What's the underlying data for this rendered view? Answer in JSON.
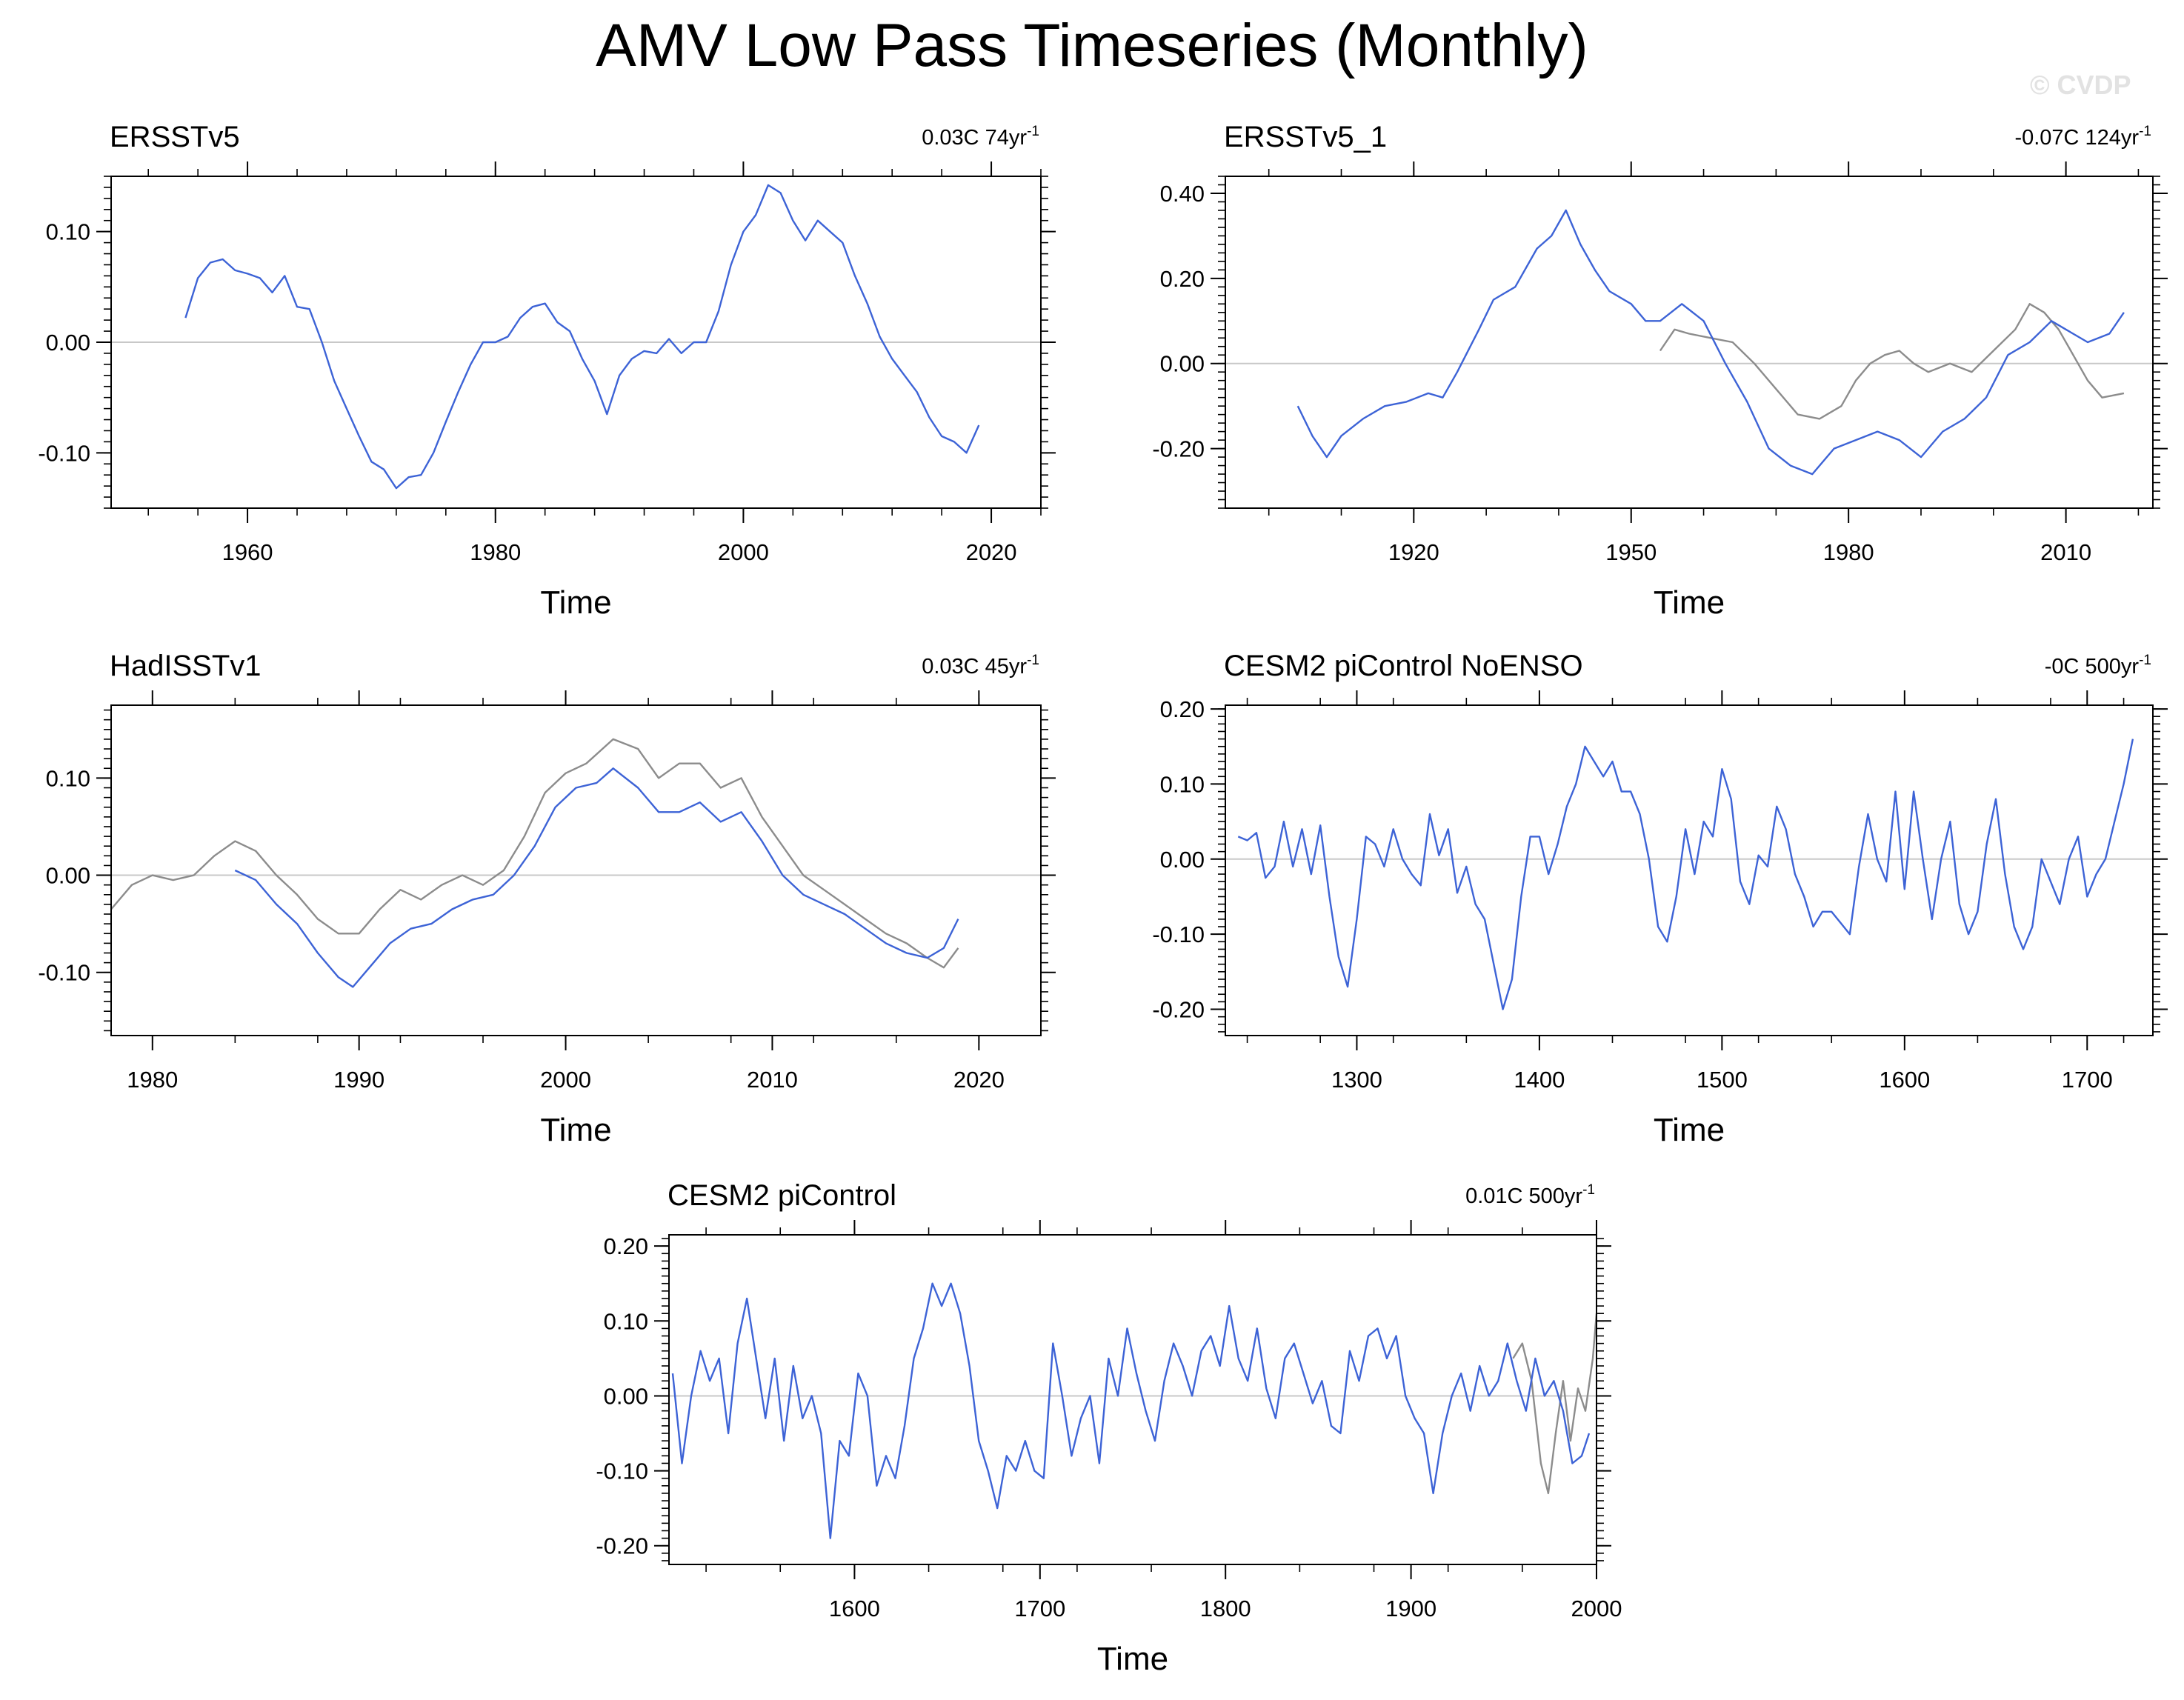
{
  "title": "AMV Low Pass Timeseries (Monthly)",
  "watermark": "© CVDP",
  "colors": {
    "primary": "#3d63d6",
    "secondary": "#8c8c8c",
    "zero_line": "#c8c8c8",
    "frame": "#000000"
  },
  "chart_data": [
    {
      "type": "line",
      "title": "ERSSTv5",
      "stat": "0.03C 74yr",
      "stat_sup": "-1",
      "xlabel": "Time",
      "xlim": [
        1949,
        2024
      ],
      "ylim": [
        -0.15,
        0.15
      ],
      "xticks": [
        1960,
        1980,
        2000,
        2020
      ],
      "xticklabels": [
        "1960",
        "1980",
        "2000",
        "2020"
      ],
      "yticks": [
        -0.1,
        0.0,
        0.1
      ],
      "yticklabels": [
        "-0.10",
        "0.00",
        "0.10"
      ],
      "series": [
        {
          "role": "primary",
          "x": [
            1955,
            1956,
            1957,
            1958,
            1959,
            1960,
            1961,
            1962,
            1963,
            1964,
            1965,
            1966,
            1967,
            1968,
            1969,
            1970,
            1971,
            1972,
            1973,
            1974,
            1975,
            1976,
            1977,
            1978,
            1979,
            1980,
            1981,
            1982,
            1983,
            1984,
            1985,
            1986,
            1987,
            1988,
            1989,
            1990,
            1991,
            1992,
            1993,
            1994,
            1995,
            1996,
            1997,
            1998,
            1999,
            2000,
            2001,
            2002,
            2003,
            2004,
            2005,
            2006,
            2007,
            2008,
            2009,
            2010,
            2011,
            2012,
            2013,
            2014,
            2015,
            2016,
            2017,
            2018,
            2019
          ],
          "y": [
            0.022,
            0.058,
            0.072,
            0.075,
            0.065,
            0.062,
            0.058,
            0.045,
            0.06,
            0.032,
            0.03,
            0.0,
            -0.035,
            -0.06,
            -0.085,
            -0.108,
            -0.115,
            -0.132,
            -0.122,
            -0.12,
            -0.1,
            -0.072,
            -0.045,
            -0.02,
            0.0,
            0.0,
            0.005,
            0.022,
            0.032,
            0.035,
            0.018,
            0.01,
            -0.015,
            -0.035,
            -0.065,
            -0.03,
            -0.015,
            -0.008,
            -0.01,
            0.003,
            -0.01,
            0.0,
            0.0,
            0.028,
            0.07,
            0.1,
            0.115,
            0.142,
            0.135,
            0.11,
            0.092,
            0.11,
            0.1,
            0.09,
            0.06,
            0.035,
            0.005,
            -0.015,
            -0.03,
            -0.045,
            -0.068,
            -0.085,
            -0.09,
            -0.1,
            -0.075
          ]
        }
      ]
    },
    {
      "type": "line",
      "title": "ERSSTv5_1",
      "stat": "-0.07C 124yr",
      "stat_sup": "-1",
      "xlabel": "Time",
      "xlim": [
        1894,
        2022
      ],
      "ylim": [
        -0.34,
        0.44
      ],
      "xticks": [
        1920,
        1950,
        1980,
        2010
      ],
      "xticklabels": [
        "1920",
        "1950",
        "1980",
        "2010"
      ],
      "yticks": [
        -0.2,
        0.0,
        0.2,
        0.4
      ],
      "yticklabels": [
        "-0.20",
        "0.00",
        "0.20",
        "0.40"
      ],
      "series": [
        {
          "role": "primary",
          "x": [
            1904,
            1906,
            1908,
            1910,
            1913,
            1916,
            1919,
            1922,
            1924,
            1926,
            1929,
            1931,
            1934,
            1937,
            1939,
            1941,
            1943,
            1945,
            1947,
            1950,
            1952,
            1954,
            1957,
            1960,
            1963,
            1966,
            1969,
            1972,
            1975,
            1978,
            1981,
            1984,
            1987,
            1990,
            1993,
            1996,
            1999,
            2002,
            2005,
            2008,
            2010,
            2013,
            2016,
            2018
          ],
          "y": [
            -0.1,
            -0.17,
            -0.22,
            -0.17,
            -0.13,
            -0.1,
            -0.09,
            -0.07,
            -0.08,
            -0.02,
            0.08,
            0.15,
            0.18,
            0.27,
            0.3,
            0.36,
            0.28,
            0.22,
            0.17,
            0.14,
            0.1,
            0.1,
            0.14,
            0.1,
            0.0,
            -0.09,
            -0.2,
            -0.24,
            -0.26,
            -0.2,
            -0.18,
            -0.16,
            -0.18,
            -0.22,
            -0.16,
            -0.13,
            -0.08,
            0.02,
            0.05,
            0.1,
            0.08,
            0.05,
            0.07,
            0.12
          ]
        },
        {
          "role": "secondary",
          "x": [
            1954,
            1956,
            1958,
            1961,
            1964,
            1967,
            1970,
            1973,
            1976,
            1979,
            1981,
            1983,
            1985,
            1987,
            1989,
            1991,
            1994,
            1997,
            2000,
            2003,
            2005,
            2007,
            2009,
            2011,
            2013,
            2015,
            2018
          ],
          "y": [
            0.03,
            0.08,
            0.07,
            0.06,
            0.05,
            0.0,
            -0.06,
            -0.12,
            -0.13,
            -0.1,
            -0.04,
            0.0,
            0.02,
            0.03,
            0.0,
            -0.02,
            0.0,
            -0.02,
            0.03,
            0.08,
            0.14,
            0.12,
            0.08,
            0.02,
            -0.04,
            -0.08,
            -0.07
          ]
        }
      ]
    },
    {
      "type": "line",
      "title": "HadISSTv1",
      "stat": "0.03C 45yr",
      "stat_sup": "-1",
      "xlabel": "Time",
      "xlim": [
        1978,
        2023
      ],
      "ylim": [
        -0.165,
        0.175
      ],
      "xticks": [
        1980,
        1990,
        2000,
        2010,
        2020
      ],
      "xticklabels": [
        "1980",
        "1990",
        "2000",
        "2010",
        "2020"
      ],
      "yticks": [
        -0.1,
        0.0,
        0.1
      ],
      "yticklabels": [
        "-0.10",
        "0.00",
        "0.10"
      ],
      "series": [
        {
          "role": "primary",
          "x": [
            1984,
            1985,
            1986,
            1987,
            1988,
            1989,
            1989.7,
            1990.5,
            1991.5,
            1992.5,
            1993.5,
            1994.5,
            1995.5,
            1996.5,
            1997.5,
            1998.5,
            1999.5,
            2000.5,
            2001.5,
            2002.3,
            2003.5,
            2004.5,
            2005.5,
            2006.5,
            2007.5,
            2008.5,
            2009.5,
            2010.5,
            2011.5,
            2012.5,
            2013.5,
            2014.5,
            2015.5,
            2016.5,
            2017.5,
            2018.3,
            2019
          ],
          "y": [
            0.005,
            -0.005,
            -0.03,
            -0.05,
            -0.08,
            -0.105,
            -0.115,
            -0.095,
            -0.07,
            -0.055,
            -0.05,
            -0.035,
            -0.025,
            -0.02,
            0.0,
            0.03,
            0.07,
            0.09,
            0.095,
            0.11,
            0.09,
            0.065,
            0.065,
            0.075,
            0.055,
            0.065,
            0.035,
            0.0,
            -0.02,
            -0.03,
            -0.04,
            -0.055,
            -0.07,
            -0.08,
            -0.085,
            -0.075,
            -0.045
          ]
        },
        {
          "role": "secondary",
          "x": [
            1978,
            1979,
            1980,
            1981,
            1982,
            1983,
            1984,
            1985,
            1986,
            1987,
            1988,
            1989,
            1990,
            1991,
            1992,
            1993,
            1994,
            1995,
            1996,
            1997,
            1998,
            1999,
            2000,
            2001,
            2002.3,
            2003.5,
            2004.5,
            2005.5,
            2006.5,
            2007.5,
            2008.5,
            2009.5,
            2010.5,
            2011.5,
            2012.5,
            2013.5,
            2014.5,
            2015.5,
            2016.5,
            2017.5,
            2018.3,
            2019
          ],
          "y": [
            -0.035,
            -0.01,
            0.0,
            -0.005,
            0.0,
            0.02,
            0.035,
            0.025,
            0.0,
            -0.02,
            -0.045,
            -0.06,
            -0.06,
            -0.035,
            -0.015,
            -0.025,
            -0.01,
            0.0,
            -0.01,
            0.005,
            0.04,
            0.085,
            0.105,
            0.115,
            0.14,
            0.13,
            0.1,
            0.115,
            0.115,
            0.09,
            0.1,
            0.06,
            0.03,
            0.0,
            -0.015,
            -0.03,
            -0.045,
            -0.06,
            -0.07,
            -0.085,
            -0.095,
            -0.075
          ]
        }
      ]
    },
    {
      "type": "line",
      "title": "CESM2 piControl NoENSO",
      "stat": "-0C 500yr",
      "stat_sup": "-1",
      "xlabel": "Time",
      "xlim": [
        1228,
        1736
      ],
      "ylim": [
        -0.235,
        0.205
      ],
      "xticks": [
        1300,
        1400,
        1500,
        1600,
        1700
      ],
      "xticklabels": [
        "1300",
        "1400",
        "1500",
        "1600",
        "1700"
      ],
      "yticks": [
        -0.2,
        -0.1,
        0.0,
        0.1,
        0.2
      ],
      "yticklabels": [
        "-0.20",
        "-0.10",
        "0.00",
        "0.10",
        "0.20"
      ],
      "series": [
        {
          "role": "primary",
          "x": [
            1235,
            1240,
            1245,
            1250,
            1255,
            1260,
            1265,
            1270,
            1275,
            1280,
            1285,
            1290,
            1295,
            1300,
            1305,
            1310,
            1315,
            1320,
            1325,
            1330,
            1335,
            1340,
            1345,
            1350,
            1355,
            1360,
            1365,
            1370,
            1375,
            1380,
            1385,
            1390,
            1395,
            1400,
            1405,
            1410,
            1415,
            1420,
            1425,
            1430,
            1435,
            1440,
            1445,
            1450,
            1455,
            1460,
            1465,
            1470,
            1475,
            1480,
            1485,
            1490,
            1495,
            1500,
            1505,
            1510,
            1515,
            1520,
            1525,
            1530,
            1535,
            1540,
            1545,
            1550,
            1555,
            1560,
            1565,
            1570,
            1575,
            1580,
            1585,
            1590,
            1595,
            1600,
            1605,
            1610,
            1615,
            1620,
            1625,
            1630,
            1635,
            1640,
            1645,
            1650,
            1655,
            1660,
            1665,
            1670,
            1675,
            1680,
            1685,
            1690,
            1695,
            1700,
            1705,
            1710,
            1715,
            1720,
            1725
          ],
          "y": [
            0.03,
            0.025,
            0.035,
            -0.025,
            -0.01,
            0.05,
            -0.01,
            0.04,
            -0.02,
            0.045,
            -0.05,
            -0.13,
            -0.17,
            -0.08,
            0.03,
            0.02,
            -0.01,
            0.04,
            0.0,
            -0.02,
            -0.035,
            0.06,
            0.005,
            0.04,
            -0.045,
            -0.01,
            -0.06,
            -0.08,
            -0.14,
            -0.2,
            -0.16,
            -0.05,
            0.03,
            0.03,
            -0.02,
            0.02,
            0.07,
            0.1,
            0.15,
            0.13,
            0.11,
            0.13,
            0.09,
            0.09,
            0.06,
            0.0,
            -0.09,
            -0.11,
            -0.05,
            0.04,
            -0.02,
            0.05,
            0.03,
            0.12,
            0.08,
            -0.03,
            -0.06,
            0.005,
            -0.01,
            0.07,
            0.04,
            -0.02,
            -0.05,
            -0.09,
            -0.07,
            -0.07,
            -0.085,
            -0.1,
            -0.01,
            0.06,
            0.0,
            -0.03,
            0.09,
            -0.04,
            0.09,
            0.0,
            -0.08,
            0.0,
            0.05,
            -0.06,
            -0.1,
            -0.07,
            0.02,
            0.08,
            -0.02,
            -0.09,
            -0.12,
            -0.09,
            0.0,
            -0.03,
            -0.06,
            0.0,
            0.03,
            -0.05,
            -0.02,
            0.0,
            0.05,
            0.1,
            0.16
          ]
        }
      ]
    },
    {
      "type": "line",
      "title": "CESM2 piControl",
      "stat": "0.01C 500yr",
      "stat_sup": "-1",
      "xlabel": "Time",
      "xlim": [
        1500,
        2000
      ],
      "ylim": [
        -0.225,
        0.215
      ],
      "xticks": [
        1600,
        1700,
        1800,
        1900,
        2000
      ],
      "xticklabels": [
        "1600",
        "1700",
        "1800",
        "1900",
        "2000"
      ],
      "yticks": [
        -0.2,
        -0.1,
        0.0,
        0.1,
        0.2
      ],
      "yticklabels": [
        "-0.20",
        "-0.10",
        "0.00",
        "0.10",
        "0.20"
      ],
      "series": [
        {
          "role": "primary",
          "x": [
            1502,
            1507,
            1512,
            1517,
            1522,
            1527,
            1532,
            1537,
            1542,
            1547,
            1552,
            1557,
            1562,
            1567,
            1572,
            1577,
            1582,
            1587,
            1592,
            1597,
            1602,
            1607,
            1612,
            1617,
            1622,
            1627,
            1632,
            1637,
            1642,
            1647,
            1652,
            1657,
            1662,
            1667,
            1672,
            1677,
            1682,
            1687,
            1692,
            1697,
            1702,
            1707,
            1712,
            1717,
            1722,
            1727,
            1732,
            1737,
            1742,
            1747,
            1752,
            1757,
            1762,
            1767,
            1772,
            1777,
            1782,
            1787,
            1792,
            1797,
            1802,
            1807,
            1812,
            1817,
            1822,
            1827,
            1832,
            1837,
            1842,
            1847,
            1852,
            1857,
            1862,
            1867,
            1872,
            1877,
            1882,
            1887,
            1892,
            1897,
            1902,
            1907,
            1912,
            1917,
            1922,
            1927,
            1932,
            1937,
            1942,
            1947,
            1952,
            1957,
            1962,
            1967,
            1972,
            1977,
            1982,
            1987,
            1992,
            1996
          ],
          "y": [
            0.03,
            -0.09,
            0.0,
            0.06,
            0.02,
            0.05,
            -0.05,
            0.07,
            0.13,
            0.05,
            -0.03,
            0.05,
            -0.06,
            0.04,
            -0.03,
            0.0,
            -0.05,
            -0.19,
            -0.06,
            -0.08,
            0.03,
            0.0,
            -0.12,
            -0.08,
            -0.11,
            -0.04,
            0.05,
            0.09,
            0.15,
            0.12,
            0.15,
            0.11,
            0.04,
            -0.06,
            -0.1,
            -0.15,
            -0.08,
            -0.1,
            -0.06,
            -0.1,
            -0.11,
            0.07,
            0.0,
            -0.08,
            -0.03,
            0.0,
            -0.09,
            0.05,
            0.0,
            0.09,
            0.03,
            -0.02,
            -0.06,
            0.02,
            0.07,
            0.04,
            0.0,
            0.06,
            0.08,
            0.04,
            0.12,
            0.05,
            0.02,
            0.09,
            0.01,
            -0.03,
            0.05,
            0.07,
            0.03,
            -0.01,
            0.02,
            -0.04,
            -0.05,
            0.06,
            0.02,
            0.08,
            0.09,
            0.05,
            0.08,
            0.0,
            -0.03,
            -0.05,
            -0.13,
            -0.05,
            0.0,
            0.03,
            -0.02,
            0.04,
            0.0,
            0.02,
            0.07,
            0.02,
            -0.02,
            0.05,
            0.0,
            0.02,
            -0.02,
            -0.09,
            -0.08,
            -0.05
          ]
        },
        {
          "role": "secondary",
          "x": [
            1955,
            1960,
            1965,
            1970,
            1974,
            1978,
            1982,
            1986,
            1990,
            1994,
            1998,
            2000
          ],
          "y": [
            0.05,
            0.07,
            0.02,
            -0.09,
            -0.13,
            -0.05,
            0.02,
            -0.06,
            0.01,
            -0.02,
            0.05,
            0.11
          ]
        }
      ]
    }
  ]
}
